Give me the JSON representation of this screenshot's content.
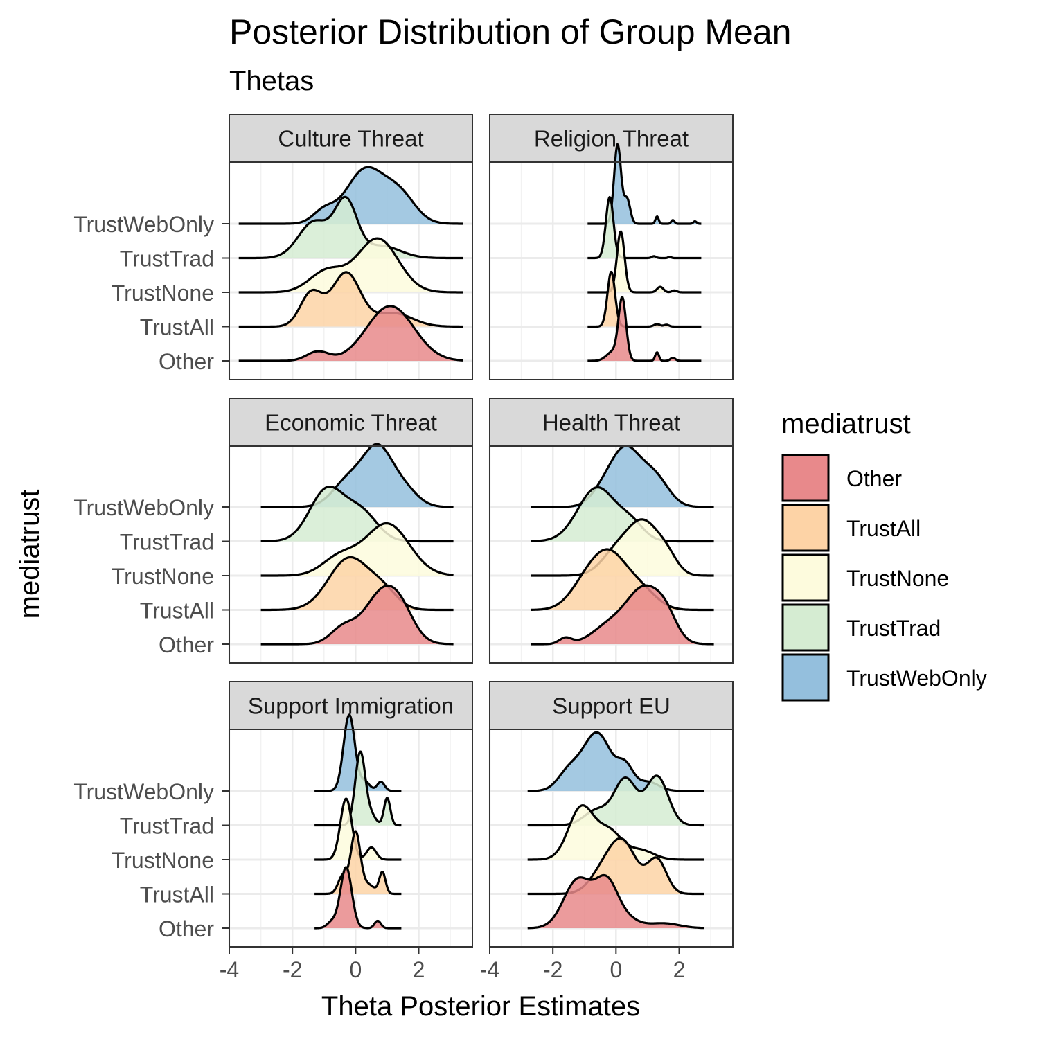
{
  "chart_data": {
    "type": "ridgeline",
    "title": "Posterior Distribution of Group Mean",
    "subtitle": "Thetas",
    "xlabel": "Theta Posterior Estimates",
    "ylabel": "mediatrust",
    "xlim": [
      -4,
      3.7
    ],
    "x_ticks": [
      "-4",
      "-2",
      "0",
      "2"
    ],
    "x_tick_values": [
      -4,
      -2,
      0,
      2
    ],
    "categories": [
      "Other",
      "TrustAll",
      "TrustNone",
      "TrustTrad",
      "TrustWebOnly"
    ],
    "legend": {
      "title": "mediatrust",
      "position": "right",
      "items": [
        "Other",
        "TrustAll",
        "TrustNone",
        "TrustTrad",
        "TrustWebOnly"
      ]
    },
    "colors": {
      "Other": "#e8898b",
      "TrustAll": "#fdd3a6",
      "TrustNone": "#fdfbdd",
      "TrustTrad": "#d5ecd2",
      "TrustWebOnly": "#94bfdd"
    },
    "grid": true,
    "panels": [
      {
        "name": "Culture Threat",
        "range": [
          -3.7,
          3.4
        ],
        "series": [
          {
            "name": "Other",
            "modes": [
              [
                1.1,
                0.75,
                0.9
              ],
              [
                -1.2,
                0.35,
                0.15
              ]
            ]
          },
          {
            "name": "TrustAll",
            "modes": [
              [
                -0.3,
                0.45,
                0.88
              ],
              [
                -1.4,
                0.35,
                0.55
              ],
              [
                1.2,
                0.6,
                0.22
              ]
            ]
          },
          {
            "name": "TrustNone",
            "modes": [
              [
                0.7,
                0.65,
                0.88
              ],
              [
                -0.9,
                0.55,
                0.35
              ]
            ]
          },
          {
            "name": "TrustTrad",
            "modes": [
              [
                -0.3,
                0.35,
                0.88
              ],
              [
                -1.3,
                0.5,
                0.6
              ],
              [
                0.8,
                0.6,
                0.2
              ]
            ]
          },
          {
            "name": "TrustWebOnly",
            "modes": [
              [
                0.3,
                0.6,
                0.88
              ],
              [
                1.4,
                0.5,
                0.45
              ],
              [
                -1.0,
                0.35,
                0.2
              ]
            ]
          }
        ]
      },
      {
        "name": "Religion Threat",
        "range": [
          -0.9,
          2.7
        ],
        "series": [
          {
            "name": "Other",
            "modes": [
              [
                0.2,
                0.12,
                1.0
              ],
              [
                -0.1,
                0.2,
                0.15
              ],
              [
                1.3,
                0.06,
                0.14
              ],
              [
                1.8,
                0.08,
                0.05
              ]
            ]
          },
          {
            "name": "TrustAll",
            "modes": [
              [
                -0.15,
                0.12,
                0.9
              ],
              [
                1.3,
                0.1,
                0.04
              ],
              [
                1.6,
                0.08,
                0.03
              ]
            ]
          },
          {
            "name": "TrustNone",
            "modes": [
              [
                0.15,
                0.12,
                1.0
              ],
              [
                1.4,
                0.1,
                0.09
              ],
              [
                1.85,
                0.08,
                0.03
              ]
            ]
          },
          {
            "name": "TrustTrad",
            "modes": [
              [
                -0.2,
                0.12,
                1.0
              ],
              [
                1.2,
                0.07,
                0.03
              ],
              [
                1.7,
                0.05,
                0.02
              ]
            ]
          },
          {
            "name": "TrustWebOnly",
            "modes": [
              [
                0.05,
                0.11,
                1.3
              ],
              [
                0.35,
                0.1,
                0.4
              ],
              [
                1.3,
                0.05,
                0.12
              ],
              [
                1.8,
                0.05,
                0.06
              ],
              [
                2.5,
                0.05,
                0.04
              ]
            ]
          }
        ]
      },
      {
        "name": "Economic Threat",
        "range": [
          -3.0,
          3.1
        ],
        "series": [
          {
            "name": "Other",
            "modes": [
              [
                0.9,
                0.6,
                0.88
              ],
              [
                -0.4,
                0.4,
                0.25
              ],
              [
                1.5,
                0.4,
                0.2
              ]
            ]
          },
          {
            "name": "TrustAll",
            "modes": [
              [
                -0.2,
                0.65,
                0.85
              ],
              [
                0.9,
                0.45,
                0.25
              ]
            ]
          },
          {
            "name": "TrustNone",
            "modes": [
              [
                1.0,
                0.7,
                0.85
              ],
              [
                -0.5,
                0.55,
                0.3
              ]
            ]
          },
          {
            "name": "TrustTrad",
            "modes": [
              [
                -0.9,
                0.55,
                0.85
              ],
              [
                0.2,
                0.5,
                0.45
              ]
            ]
          },
          {
            "name": "TrustWebOnly",
            "modes": [
              [
                0.7,
                0.45,
                0.88
              ],
              [
                -0.2,
                0.5,
                0.45
              ],
              [
                1.5,
                0.45,
                0.3
              ]
            ]
          }
        ]
      },
      {
        "name": "Health Threat",
        "range": [
          -2.7,
          3.1
        ],
        "series": [
          {
            "name": "Other",
            "modes": [
              [
                0.9,
                0.55,
                0.88
              ],
              [
                -0.2,
                0.55,
                0.3
              ],
              [
                1.6,
                0.35,
                0.3
              ],
              [
                -1.6,
                0.2,
                0.1
              ]
            ]
          },
          {
            "name": "TrustAll",
            "modes": [
              [
                -0.2,
                0.55,
                0.85
              ],
              [
                -1.0,
                0.5,
                0.35
              ],
              [
                0.8,
                0.5,
                0.3
              ]
            ]
          },
          {
            "name": "TrustNone",
            "modes": [
              [
                0.9,
                0.45,
                0.75
              ],
              [
                0.1,
                0.5,
                0.45
              ],
              [
                1.6,
                0.35,
                0.3
              ]
            ]
          },
          {
            "name": "TrustTrad",
            "modes": [
              [
                -0.6,
                0.6,
                0.88
              ],
              [
                0.5,
                0.4,
                0.25
              ]
            ]
          },
          {
            "name": "TrustWebOnly",
            "modes": [
              [
                0.3,
                0.45,
                0.88
              ],
              [
                1.2,
                0.45,
                0.5
              ],
              [
                -0.4,
                0.4,
                0.25
              ]
            ]
          }
        ]
      },
      {
        "name": "Support Immigration",
        "range": [
          -1.3,
          1.45
        ],
        "series": [
          {
            "name": "Other",
            "modes": [
              [
                -0.3,
                0.18,
                1.0
              ],
              [
                -0.75,
                0.15,
                0.1
              ],
              [
                0.7,
                0.1,
                0.12
              ]
            ]
          },
          {
            "name": "TrustAll",
            "modes": [
              [
                0.0,
                0.15,
                1.0
              ],
              [
                -0.4,
                0.15,
                0.3
              ],
              [
                0.85,
                0.1,
                0.35
              ],
              [
                0.4,
                0.2,
                0.15
              ]
            ]
          },
          {
            "name": "TrustNone",
            "modes": [
              [
                -0.3,
                0.18,
                1.0
              ],
              [
                0.5,
                0.15,
                0.2
              ]
            ]
          },
          {
            "name": "TrustTrad",
            "modes": [
              [
                0.15,
                0.16,
                1.2
              ],
              [
                1.0,
                0.1,
                0.45
              ],
              [
                0.5,
                0.15,
                0.15
              ]
            ]
          },
          {
            "name": "TrustWebOnly",
            "modes": [
              [
                -0.2,
                0.18,
                1.25
              ],
              [
                0.8,
                0.12,
                0.15
              ],
              [
                0.3,
                0.15,
                0.15
              ]
            ]
          }
        ]
      },
      {
        "name": "Support EU",
        "range": [
          -2.8,
          2.8
        ],
        "series": [
          {
            "name": "Other",
            "modes": [
              [
                -1.2,
                0.45,
                0.8
              ],
              [
                -0.3,
                0.35,
                0.7
              ],
              [
                1.5,
                0.5,
                0.08
              ],
              [
                0.3,
                0.4,
                0.15
              ]
            ]
          },
          {
            "name": "TrustAll",
            "modes": [
              [
                0.2,
                0.45,
                0.85
              ],
              [
                1.3,
                0.3,
                0.55
              ],
              [
                -0.5,
                0.4,
                0.25
              ]
            ]
          },
          {
            "name": "TrustNone",
            "modes": [
              [
                -1.1,
                0.4,
                0.85
              ],
              [
                -0.2,
                0.4,
                0.45
              ],
              [
                0.8,
                0.4,
                0.15
              ]
            ]
          },
          {
            "name": "TrustTrad",
            "modes": [
              [
                0.3,
                0.35,
                0.75
              ],
              [
                1.3,
                0.35,
                0.8
              ],
              [
                -0.6,
                0.4,
                0.25
              ]
            ]
          },
          {
            "name": "TrustWebOnly",
            "modes": [
              [
                -0.6,
                0.45,
                0.95
              ],
              [
                0.3,
                0.25,
                0.35
              ],
              [
                -1.5,
                0.35,
                0.3
              ],
              [
                1.0,
                0.35,
                0.15
              ]
            ]
          }
        ]
      }
    ]
  }
}
